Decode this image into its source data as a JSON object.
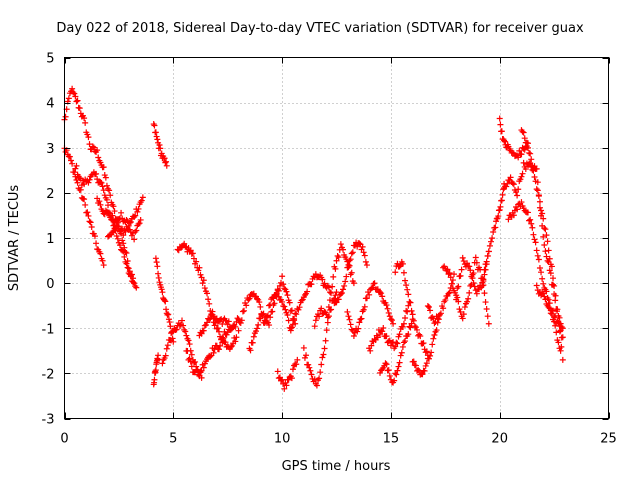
{
  "chart_data": {
    "type": "scatter",
    "title": "Day 022 of 2018, Sidereal Day-to-day VTEC variation (SDTVAR) for receiver guax",
    "xlabel": "GPS time / hours",
    "ylabel": "SDTVAR / TECUs",
    "xlim": [
      0,
      25
    ],
    "ylim": [
      -3,
      5
    ],
    "xticks": [
      "0",
      "5",
      "10",
      "15",
      "20",
      "25"
    ],
    "yticks": [
      "-3",
      "-2",
      "-1",
      "0",
      "1",
      "2",
      "3",
      "4",
      "5"
    ],
    "grid": true,
    "marker": "+",
    "series": [
      {
        "name": "guax",
        "color": "#ff0000",
        "tracks": [
          {
            "x": [
              0.0,
              0.3,
              0.6,
              0.9,
              1.2,
              1.5,
              1.8,
              2.1,
              2.4,
              2.7,
              3.0,
              3.3
            ],
            "y": [
              3.6,
              4.3,
              4.0,
              3.6,
              3.0,
              2.9,
              2.5,
              1.9,
              1.4,
              0.9,
              0.3,
              -0.1
            ]
          },
          {
            "x": [
              0.0,
              0.3,
              0.6,
              0.9,
              1.2,
              1.5,
              1.8
            ],
            "y": [
              3.0,
              2.7,
              2.2,
              1.8,
              1.3,
              0.8,
              0.4
            ]
          },
          {
            "x": [
              0.5,
              0.8,
              1.1,
              1.4,
              1.7,
              2.0,
              2.3,
              2.6,
              2.9,
              3.2
            ],
            "y": [
              2.6,
              2.2,
              2.3,
              2.4,
              2.2,
              1.7,
              1.2,
              0.8,
              0.3,
              0.0
            ]
          },
          {
            "x": [
              1.5,
              1.8,
              2.1,
              2.4,
              2.7,
              3.0,
              3.3,
              3.6
            ],
            "y": [
              1.9,
              1.6,
              1.5,
              1.3,
              1.1,
              1.3,
              1.6,
              1.9
            ]
          },
          {
            "x": [
              2.0,
              2.3,
              2.6,
              2.9,
              3.2,
              3.5
            ],
            "y": [
              1.0,
              1.2,
              1.5,
              1.3,
              1.0,
              1.4
            ]
          },
          {
            "x": [
              4.1,
              4.3,
              4.5,
              4.7
            ],
            "y": [
              3.5,
              3.1,
              2.8,
              2.6
            ]
          },
          {
            "x": [
              4.1,
              4.2,
              4.3
            ],
            "y": [
              -2.2,
              -1.9,
              -1.6
            ]
          },
          {
            "x": [
              4.2,
              4.4,
              4.6,
              4.8,
              5.0
            ],
            "y": [
              0.5,
              0.0,
              -0.4,
              -0.8,
              -1.3
            ]
          },
          {
            "x": [
              4.5,
              4.8,
              5.1,
              5.4,
              5.7,
              6.0,
              6.3
            ],
            "y": [
              -1.8,
              -1.3,
              -1.0,
              -0.9,
              -1.3,
              -1.8,
              -2.1
            ]
          },
          {
            "x": [
              5.2,
              5.5,
              5.8,
              6.1,
              6.4,
              6.7,
              7.0,
              7.3,
              7.6,
              7.9
            ],
            "y": [
              0.7,
              0.8,
              0.7,
              0.4,
              0.0,
              -0.6,
              -1.0,
              -1.3,
              -1.4,
              -1.2
            ]
          },
          {
            "x": [
              5.6,
              5.9,
              6.2,
              6.5,
              6.8,
              7.1,
              7.4,
              7.7,
              8.0
            ],
            "y": [
              -1.5,
              -1.9,
              -2.0,
              -1.7,
              -1.5,
              -1.4,
              -1.1,
              -1.0,
              -0.8
            ]
          },
          {
            "x": [
              6.2,
              6.5,
              6.8,
              7.1,
              7.4,
              7.7
            ],
            "y": [
              -1.2,
              -0.9,
              -0.7,
              -0.9,
              -0.8,
              -1.0
            ]
          },
          {
            "x": [
              8.0,
              8.3,
              8.6,
              8.9,
              9.2,
              9.5,
              9.8,
              10.1,
              10.4
            ],
            "y": [
              -1.0,
              -0.5,
              -0.2,
              -0.4,
              -0.9,
              -0.4,
              -0.2,
              -0.5,
              -1.0
            ]
          },
          {
            "x": [
              8.5,
              8.8,
              9.1,
              9.4,
              9.7,
              10.0,
              10.3,
              10.6
            ],
            "y": [
              -1.5,
              -1.0,
              -0.7,
              -0.9,
              -0.3,
              0.1,
              -0.4,
              -0.9
            ]
          },
          {
            "x": [
              9.8,
              10.1,
              10.4,
              10.7
            ],
            "y": [
              -2.0,
              -2.3,
              -2.1,
              -1.7
            ]
          },
          {
            "x": [
              10.4,
              10.7,
              11.0,
              11.3,
              11.6,
              11.9,
              12.2
            ],
            "y": [
              -1.0,
              -0.6,
              -0.3,
              0.0,
              0.2,
              0.0,
              -0.2
            ]
          },
          {
            "x": [
              11.0,
              11.3,
              11.6,
              11.9,
              12.2,
              12.5
            ],
            "y": [
              -1.5,
              -2.0,
              -2.3,
              -1.6,
              -0.6,
              -0.2
            ]
          },
          {
            "x": [
              11.5,
              11.8,
              12.1,
              12.4,
              12.7,
              13.0,
              13.3
            ],
            "y": [
              -0.9,
              -0.6,
              -0.7,
              0.3,
              0.8,
              0.5,
              0.0
            ]
          },
          {
            "x": [
              12.4,
              12.7,
              13.0,
              13.3,
              13.6,
              13.9
            ],
            "y": [
              -0.5,
              -0.3,
              0.3,
              0.8,
              0.9,
              0.4
            ]
          },
          {
            "x": [
              13.0,
              13.3,
              13.6,
              13.9,
              14.2,
              14.5,
              14.8,
              15.1
            ],
            "y": [
              -0.7,
              -1.2,
              -0.8,
              -0.3,
              0.0,
              -0.2,
              -0.5,
              -0.9
            ]
          },
          {
            "x": [
              14.0,
              14.3,
              14.6,
              14.9,
              15.2,
              15.5,
              15.8
            ],
            "y": [
              -1.5,
              -1.2,
              -1.0,
              -1.3,
              -1.4,
              -1.0,
              -0.5
            ]
          },
          {
            "x": [
              14.5,
              14.8,
              15.1,
              15.4,
              15.7,
              16.0
            ],
            "y": [
              -2.0,
              -1.8,
              -2.2,
              -1.7,
              -1.2,
              -0.8
            ]
          },
          {
            "x": [
              15.2,
              15.5,
              15.8,
              16.1,
              16.4,
              16.7
            ],
            "y": [
              0.3,
              0.5,
              -0.3,
              -0.9,
              -1.3,
              -1.6
            ]
          },
          {
            "x": [
              16.0,
              16.3,
              16.6,
              16.9,
              17.2
            ],
            "y": [
              -1.7,
              -2.0,
              -1.9,
              -1.4,
              -0.8
            ]
          },
          {
            "x": [
              16.7,
              17.0,
              17.3,
              17.6,
              17.9
            ],
            "y": [
              -0.5,
              -0.9,
              -0.6,
              -0.3,
              0.2
            ]
          },
          {
            "x": [
              17.4,
              17.7,
              18.0,
              18.3,
              18.6,
              18.9,
              19.2,
              19.5
            ],
            "y": [
              0.4,
              0.2,
              -0.3,
              0.5,
              0.3,
              -0.2,
              0.0,
              0.7
            ]
          },
          {
            "x": [
              18.0,
              18.3,
              18.6,
              18.9,
              19.2,
              19.5
            ],
            "y": [
              -0.3,
              -0.8,
              -0.2,
              0.5,
              0.1,
              -0.9
            ]
          },
          {
            "x": [
              19.2,
              19.5,
              19.8,
              20.0,
              20.2
            ],
            "y": [
              0.0,
              0.7,
              1.3,
              1.6,
              2.2
            ]
          },
          {
            "x": [
              20.0,
              20.2,
              20.4,
              20.7,
              21.0,
              21.3
            ],
            "y": [
              3.6,
              3.1,
              3.0,
              2.8,
              2.9,
              3.1
            ]
          },
          {
            "x": [
              20.2,
              20.5,
              20.8,
              21.1,
              21.4,
              21.7,
              22.0,
              22.3,
              22.6,
              22.9
            ],
            "y": [
              2.1,
              2.3,
              2.0,
              2.6,
              2.6,
              2.5,
              1.0,
              0.3,
              -0.5,
              -1.0
            ]
          },
          {
            "x": [
              20.4,
              20.7,
              21.0,
              21.3,
              21.6,
              21.9,
              22.2,
              22.5,
              22.8
            ],
            "y": [
              1.4,
              1.6,
              1.8,
              1.5,
              1.0,
              0.2,
              -0.3,
              -0.9,
              -1.5
            ]
          },
          {
            "x": [
              21.0,
              21.3,
              21.6,
              21.9,
              22.2,
              22.5,
              22.9
            ],
            "y": [
              3.4,
              3.0,
              2.4,
              1.6,
              0.9,
              0.0,
              -1.7
            ]
          },
          {
            "x": [
              21.7,
              22.0,
              22.3,
              22.6,
              22.9
            ],
            "y": [
              -0.1,
              -0.3,
              -0.5,
              -0.8,
              -1.2
            ]
          }
        ]
      }
    ]
  }
}
